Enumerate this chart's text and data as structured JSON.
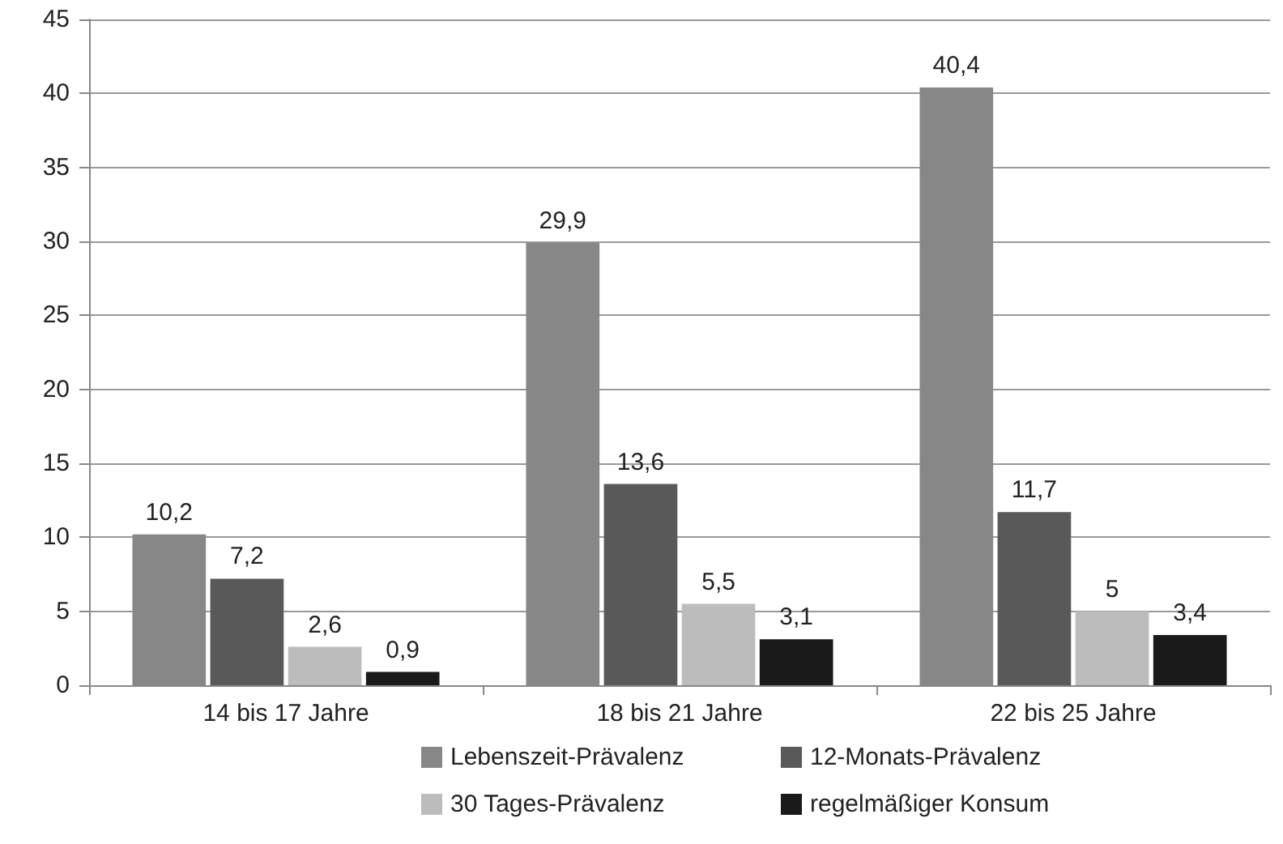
{
  "chart_data": {
    "type": "bar",
    "categories": [
      "14 bis 17 Jahre",
      "18 bis 21 Jahre",
      "22 bis 25 Jahre"
    ],
    "series": [
      {
        "name": "Lebenszeit-Prävalenz",
        "color": "#878787",
        "values": [
          10.2,
          29.9,
          40.4
        ],
        "value_labels": [
          "10,2",
          "29,9",
          "40,4"
        ]
      },
      {
        "name": "12-Monats-Prävalenz",
        "color": "#595959",
        "values": [
          7.2,
          13.6,
          11.7
        ],
        "value_labels": [
          "7,2",
          "13,6",
          "11,7"
        ]
      },
      {
        "name": "30 Tages-Prävalenz",
        "color": "#bcbcbc",
        "values": [
          2.6,
          5.5,
          5
        ],
        "value_labels": [
          "2,6",
          "5,5",
          "5"
        ]
      },
      {
        "name": "regelmäßiger Konsum",
        "color": "#1a1a1a",
        "values": [
          0.9,
          3.1,
          3.4
        ],
        "value_labels": [
          "0,9",
          "3,1",
          "3,4"
        ]
      }
    ],
    "ylim": [
      0,
      45
    ],
    "yticks": [
      0,
      5,
      10,
      15,
      20,
      25,
      30,
      35,
      40,
      45
    ],
    "grid": "y",
    "legend": "bottom"
  }
}
